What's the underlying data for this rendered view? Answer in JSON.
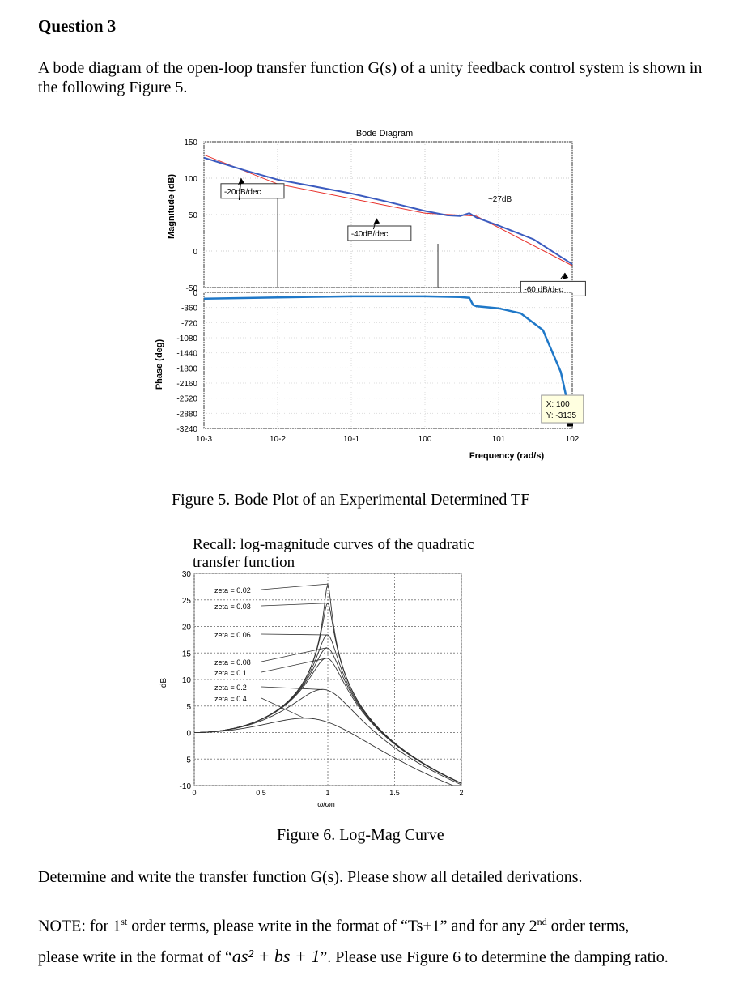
{
  "question_title": "Question 3",
  "intro_text": "A bode diagram of the open-loop transfer function G(s) of a unity feedback control system is shown in the following Figure 5.",
  "figure5": {
    "caption": "Figure 5. Bode Plot of an Experimental Determined TF",
    "chart_data": {
      "type": "line",
      "title": "Bode Diagram",
      "xlabel": "Frequency (rad/s)",
      "x_scale": "log",
      "xlim": [
        0.001,
        100
      ],
      "x_ticks": [
        "10-3",
        "10-2",
        "10-1",
        "100",
        "101",
        "102"
      ],
      "magnitude": {
        "ylabel": "Magnitude (dB)",
        "ylim": [
          -50,
          150
        ],
        "y_ticks": [
          150,
          100,
          50,
          0,
          -50
        ],
        "series": [
          {
            "x": [
              0.001,
              0.0035,
              0.01,
              0.03,
              0.1,
              0.3,
              1,
              2,
              3,
              4,
              5,
              10,
              30,
              100
            ],
            "y": [
              128,
              111,
              98,
              89,
              79,
              68,
              55,
              49,
              48,
              52,
              46,
              35,
              16,
              -18
            ]
          }
        ],
        "asymptotes": [
          {
            "label": "-20dB/dec",
            "x": [
              0.001,
              0.01
            ],
            "y": [
              132,
              92
            ]
          },
          {
            "label": "-40dB/dec",
            "x": [
              0.01,
              1
            ],
            "y": [
              92,
              52
            ]
          },
          {
            "label": "~27dB",
            "x": [
              1,
              5
            ],
            "y": [
              52,
              48
            ]
          },
          {
            "label": "-60 dB/dec",
            "x": [
              5,
              100
            ],
            "y": [
              48,
              -20
            ]
          }
        ],
        "annotations": [
          "-20dB/dec",
          "-40dB/dec",
          "~27dB",
          "-60 dB/dec"
        ]
      },
      "phase": {
        "ylabel": "Phase (deg)",
        "ylim": [
          -3240,
          0
        ],
        "y_ticks": [
          0,
          -360,
          -720,
          -1080,
          -1440,
          -1800,
          -2160,
          -2520,
          -2880,
          -3240
        ],
        "series": [
          {
            "x": [
              0.001,
              0.01,
              0.1,
              1,
              3,
              4,
              4.5,
              5,
              10,
              20,
              40,
              70,
              100
            ],
            "y": [
              -150,
              -120,
              -95,
              -95,
              -110,
              -130,
              -300,
              -330,
              -380,
              -500,
              -900,
              -1900,
              -3135
            ]
          }
        ],
        "datatip": {
          "x_label": "X: 100",
          "y_label": "Y: -3135"
        }
      }
    }
  },
  "figure6": {
    "recall_line1": "Recall: log-magnitude curves of the quadratic",
    "recall_line2": "transfer function",
    "caption": "Figure 6. Log-Mag Curve",
    "chart_data": {
      "type": "line",
      "xlabel": "ω/ωn",
      "ylabel": "dB",
      "xlim": [
        0,
        2
      ],
      "ylim": [
        -10,
        30
      ],
      "x_ticks": [
        "0",
        "0.5",
        "1",
        "1.5",
        "2"
      ],
      "y_ticks": [
        "30",
        "25",
        "20",
        "15",
        "10",
        "5",
        "0",
        "-5",
        "-10"
      ],
      "series": [
        {
          "name": "zeta = 0.02",
          "peak_db": 28
        },
        {
          "name": "zeta = 0.03",
          "peak_db": 24.4
        },
        {
          "name": "zeta = 0.06",
          "peak_db": 18.4
        },
        {
          "name": "zeta = 0.08",
          "peak_db": 16
        },
        {
          "name": "zeta = 0.1",
          "peak_db": 14
        },
        {
          "name": "zeta = 0.2",
          "peak_db": 8.1
        },
        {
          "name": "zeta = 0.4",
          "peak_db": 2.7
        }
      ]
    }
  },
  "para1": "Determine and write the transfer function G(s). Please show all detailed derivations.",
  "para2_a": "NOTE: for 1",
  "para2_sup1": "st",
  "para2_b": " order terms, please write in the format of “Ts+1” and for any 2",
  "para2_sup2": "nd",
  "para2_c": " order terms,",
  "para3_a": "please write in the format of “",
  "para3_math": "as² + bs + 1",
  "para3_b": "”. Please use Figure 6 to determine the damping ratio."
}
